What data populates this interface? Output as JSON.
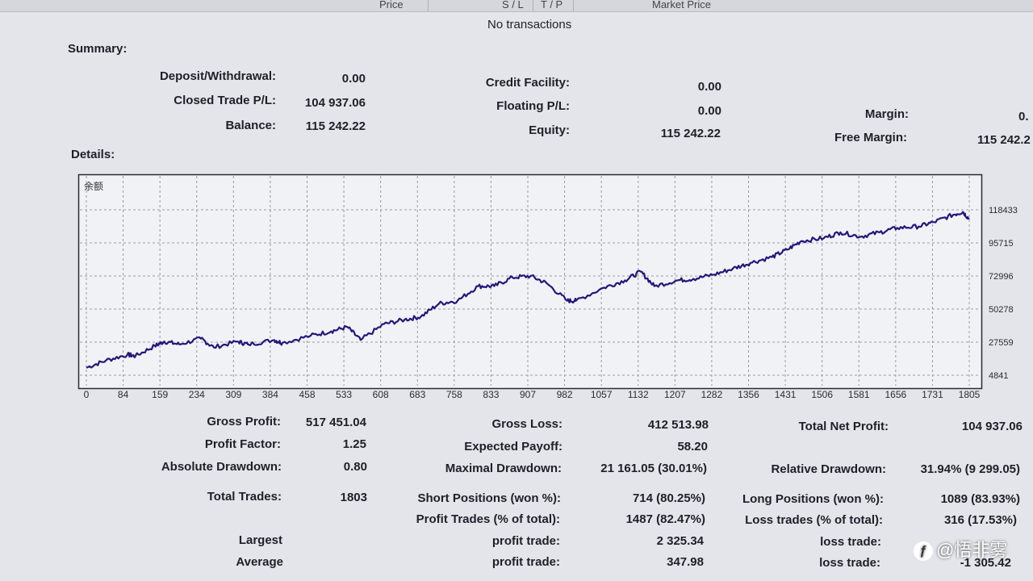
{
  "header": {
    "columns": [
      "Price",
      "S / L",
      "T / P",
      "Market Price"
    ],
    "no_transactions": "No transactions"
  },
  "summary": {
    "title": "Summary:",
    "deposit_label": "Deposit/Withdrawal:",
    "deposit_value": "0.00",
    "closed_label": "Closed Trade P/L:",
    "closed_value": "104 937.06",
    "balance_label": "Balance:",
    "balance_value": "115 242.22",
    "credit_label": "Credit Facility:",
    "credit_value": "0.00",
    "floating_label": "Floating P/L:",
    "floating_value": "0.00",
    "equity_label": "Equity:",
    "equity_value": "115 242.22",
    "margin_label": "Margin:",
    "margin_value": "0.",
    "free_margin_label": "Free Margin:",
    "free_margin_value": "115 242.2"
  },
  "details": {
    "title": "Details:"
  },
  "chart_data": {
    "type": "line",
    "title": "余额",
    "x_ticks": [
      "0",
      "84",
      "159",
      "234",
      "309",
      "384",
      "458",
      "533",
      "608",
      "683",
      "758",
      "833",
      "907",
      "982",
      "1057",
      "1132",
      "1207",
      "1282",
      "1356",
      "1431",
      "1506",
      "1581",
      "1656",
      "1731",
      "1805"
    ],
    "y_ticks": [
      4841,
      27559,
      50278,
      72996,
      95715,
      118433
    ],
    "ylim": [
      4841,
      118433
    ],
    "xlim": [
      0,
      1803
    ],
    "grid": true,
    "series": [
      {
        "x": [
          0,
          40,
          84,
          100,
          140,
          159,
          190,
          234,
          260,
          309,
          330,
          384,
          400,
          458,
          500,
          533,
          560,
          608,
          650,
          683,
          720,
          758,
          800,
          833,
          870,
          907,
          940,
          982,
          1000,
          1057,
          1100,
          1132,
          1160,
          1207,
          1240,
          1282,
          1320,
          1356,
          1400,
          1431,
          1460,
          1506,
          1540,
          1581,
          1620,
          1656,
          1700,
          1731,
          1770,
          1790,
          1803
        ],
        "y": [
          10000,
          15000,
          19000,
          18000,
          25000,
          28000,
          26000,
          30000,
          24000,
          28000,
          26000,
          29000,
          27000,
          32000,
          35000,
          38000,
          29000,
          40000,
          43000,
          45000,
          54000,
          56000,
          66000,
          66000,
          72000,
          73000,
          68000,
          56000,
          56000,
          65000,
          70000,
          76000,
          66000,
          70000,
          71000,
          74000,
          78000,
          82000,
          86000,
          91000,
          97000,
          99000,
          103000,
          100000,
          103000,
          106000,
          107000,
          110000,
          115000,
          117000,
          112000
        ]
      }
    ]
  },
  "stats": {
    "gross_profit_label": "Gross Profit:",
    "gross_profit_value": "517 451.04",
    "gross_loss_label": "Gross Loss:",
    "gross_loss_value": "412 513.98",
    "total_net_label": "Total Net Profit:",
    "total_net_value": "104 937.06",
    "profit_factor_label": "Profit Factor:",
    "profit_factor_value": "1.25",
    "expected_payoff_label": "Expected Payoff:",
    "expected_payoff_value": "58.20",
    "abs_dd_label": "Absolute Drawdown:",
    "abs_dd_value": "0.80",
    "max_dd_label": "Maximal Drawdown:",
    "max_dd_value": "21 161.05 (30.01%)",
    "rel_dd_label": "Relative Drawdown:",
    "rel_dd_value": "31.94% (9 299.05)",
    "total_trades_label": "Total Trades:",
    "total_trades_value": "1803",
    "short_label": "Short Positions (won %):",
    "short_value": "714 (80.25%)",
    "long_label": "Long Positions (won %):",
    "long_value": "1089 (83.93%)",
    "profit_trades_label": "Profit Trades (% of total):",
    "profit_trades_value": "1487 (82.47%)",
    "loss_trades_label": "Loss trades (% of total):",
    "loss_trades_value": "316 (17.53%)",
    "largest_label": "Largest",
    "largest_profit_label": "profit trade:",
    "largest_profit_value": "2 325.34",
    "largest_loss_label": "loss trade:",
    "average_label": "Average",
    "average_profit_label": "profit trade:",
    "average_profit_value": "347.98",
    "average_loss_label": "loss trade:",
    "average_loss_value": "-1 305.42"
  },
  "watermark": {
    "text": "@悟非雾",
    "icon": "app-logo-icon"
  }
}
